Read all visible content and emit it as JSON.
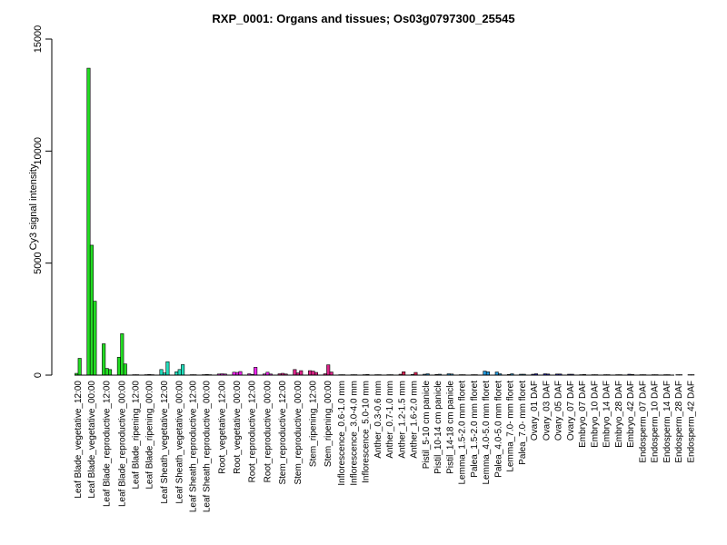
{
  "chart_data": {
    "type": "bar",
    "title": "RXP_0001: Organs and tissues; Os03g0797300_25545",
    "xlabel": "",
    "ylabel": "Cy3 signal intensity",
    "ylim": [
      0,
      15000
    ],
    "yticks": [
      0,
      5000,
      10000,
      15000
    ],
    "grid": false,
    "groups": [
      {
        "label": "Leaf Blade_vegetative_12:00",
        "color": "#22dd22",
        "values": [
          80,
          750
        ]
      },
      {
        "label": "Leaf Blade_vegetative_00:00",
        "color": "#22dd22",
        "values": [
          13700,
          5800,
          3300
        ]
      },
      {
        "label": "Leaf Blade_reproductive_12:00",
        "color": "#22dd22",
        "values": [
          1400,
          300,
          250
        ]
      },
      {
        "label": "Leaf Blade_reproductive_00:00",
        "color": "#22dd22",
        "values": [
          800,
          1850,
          500
        ]
      },
      {
        "label": "Leaf Blade_ripening_12:00",
        "color": "#22dd22",
        "values": [
          20,
          20
        ]
      },
      {
        "label": "Leaf Blade_ripening_00:00",
        "color": "#22dd22",
        "values": [
          20,
          30,
          20
        ]
      },
      {
        "label": "Leaf Sheath_vegetative_12:00",
        "color": "#22ddbb",
        "values": [
          250,
          100,
          600
        ]
      },
      {
        "label": "Leaf Sheath_vegetative_00:00",
        "color": "#22ddbb",
        "values": [
          150,
          250,
          470
        ]
      },
      {
        "label": "Leaf Sheath_reproductive_12:00",
        "color": "#22ddbb",
        "values": [
          20,
          20
        ]
      },
      {
        "label": "Leaf Sheath_reproductive_00:00",
        "color": "#22ddbb",
        "values": [
          20,
          30,
          20
        ]
      },
      {
        "label": "Root_vegetative_12:00",
        "color": "#ee22ee",
        "values": [
          50,
          60,
          50
        ]
      },
      {
        "label": "Root_vegetative_00:00",
        "color": "#ee22ee",
        "values": [
          130,
          120,
          160
        ]
      },
      {
        "label": "Root_reproductive_12:00",
        "color": "#ee22ee",
        "values": [
          60,
          30,
          350
        ]
      },
      {
        "label": "Root_reproductive_00:00",
        "color": "#ee22ee",
        "values": [
          50,
          130,
          50
        ]
      },
      {
        "label": "Stem_reproductive_12:00",
        "color": "#dd2288",
        "values": [
          60,
          80,
          50
        ]
      },
      {
        "label": "Stem_reproductive_00:00",
        "color": "#dd2288",
        "values": [
          250,
          100,
          200
        ]
      },
      {
        "label": "Stem_ripening_12:00",
        "color": "#dd2288",
        "values": [
          200,
          180,
          120
        ]
      },
      {
        "label": "Stem_ripening_00:00",
        "color": "#dd2288",
        "values": [
          60,
          460,
          140
        ]
      },
      {
        "label": "Inflorescence_0.6-1.0 mm",
        "color": "#dd2255",
        "values": [
          20,
          20
        ]
      },
      {
        "label": "Inflorescence_3.0-4.0 mm",
        "color": "#dd2255",
        "values": [
          20,
          20
        ]
      },
      {
        "label": "Inflorescence_5.0-10 mm",
        "color": "#dd2255",
        "values": [
          20,
          30
        ]
      },
      {
        "label": "Anther_0.3-0.6 mm",
        "color": "#dd2255",
        "values": [
          20,
          20
        ]
      },
      {
        "label": "Anther_0.7-1.0 mm",
        "color": "#dd2255",
        "values": [
          20,
          20
        ]
      },
      {
        "label": "Anther_1.2-1.5 mm",
        "color": "#dd2255",
        "values": [
          40,
          150
        ]
      },
      {
        "label": "Anther_1.6-2.0 mm",
        "color": "#dd2255",
        "values": [
          30,
          120
        ]
      },
      {
        "label": "Pistil_5-10 cm panicle",
        "color": "#2299dd",
        "values": [
          40,
          60
        ]
      },
      {
        "label": "Pistil_10-14 cm panicle",
        "color": "#2299dd",
        "values": [
          30,
          40
        ]
      },
      {
        "label": "Pistil_14-18 cm panicle",
        "color": "#2299dd",
        "values": [
          60,
          50
        ]
      },
      {
        "label": "Lemma_1.5-2.0 mm floret",
        "color": "#2299dd",
        "values": [
          20,
          20
        ]
      },
      {
        "label": "Palea_1.5-2.0 mm floret",
        "color": "#2299dd",
        "values": [
          20,
          20
        ]
      },
      {
        "label": "Lemma_4.0-5.0 mm floret",
        "color": "#2299dd",
        "values": [
          180,
          150
        ]
      },
      {
        "label": "Palea_4.0-5.0 mm floret",
        "color": "#2299dd",
        "values": [
          140,
          60
        ]
      },
      {
        "label": "Lemma_7.0- mm floret",
        "color": "#2299dd",
        "values": [
          30,
          60
        ]
      },
      {
        "label": "Palea_7.0- mm floret",
        "color": "#2299dd",
        "values": [
          40,
          40
        ]
      },
      {
        "label": "Ovary_01 DAF",
        "color": "#2222cc",
        "values": [
          40,
          60
        ]
      },
      {
        "label": "Ovary_03 DAF",
        "color": "#2222cc",
        "values": [
          60,
          50
        ]
      },
      {
        "label": "Ovary_05 DAF",
        "color": "#2222cc",
        "values": [
          50,
          50
        ]
      },
      {
        "label": "Ovary_07 DAF",
        "color": "#2222cc",
        "values": [
          40,
          40
        ]
      },
      {
        "label": "Embryo_07 DAF",
        "color": "#2222cc",
        "values": [
          20,
          30
        ]
      },
      {
        "label": "Embryo_10 DAF",
        "color": "#2222cc",
        "values": [
          20,
          20
        ]
      },
      {
        "label": "Embryo_14 DAF",
        "color": "#2222cc",
        "values": [
          20,
          20
        ]
      },
      {
        "label": "Embryo_28 DAF",
        "color": "#2222cc",
        "values": [
          20,
          20
        ]
      },
      {
        "label": "Embryo_42 DAF",
        "color": "#2222cc",
        "values": [
          40,
          30
        ]
      },
      {
        "label": "Endosperm_07 DAF",
        "color": "#2222cc",
        "values": [
          20,
          20
        ]
      },
      {
        "label": "Endosperm_10 DAF",
        "color": "#2222cc",
        "values": [
          20,
          20
        ]
      },
      {
        "label": "Endosperm_14 DAF",
        "color": "#2222cc",
        "values": [
          20,
          20
        ]
      },
      {
        "label": "Endosperm_28 DAF",
        "color": "#2222cc",
        "values": [
          20,
          20
        ]
      },
      {
        "label": "Endosperm_42 DAF",
        "color": "#2222cc",
        "values": [
          20,
          20
        ]
      }
    ]
  }
}
